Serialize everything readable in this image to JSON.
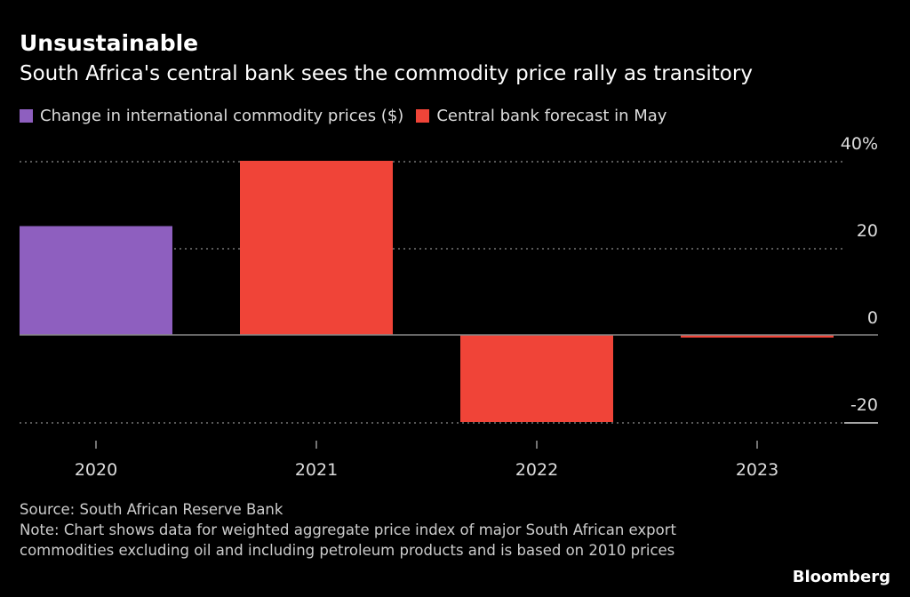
{
  "title": "Unsustainable",
  "subtitle": "South Africa's central bank sees the commodity price rally as transitory",
  "colors": {
    "actual": "#8e5fbf",
    "forecast": "#f04438",
    "background": "#000000"
  },
  "chart_data": {
    "type": "bar",
    "title": "Unsustainable",
    "subtitle": "South Africa's central bank sees the commodity price rally as transitory",
    "categories": [
      "2020",
      "2021",
      "2022",
      "2023"
    ],
    "legend": [
      {
        "name": "Change in international commodity prices ($)",
        "color": "#8e5fbf"
      },
      {
        "name": "Central bank forecast in May",
        "color": "#f04438"
      }
    ],
    "legend_placement": "top-left",
    "values": [
      25,
      40,
      -20,
      -0.6
    ],
    "series_of_bar": [
      "Change in international commodity prices ($)",
      "Central bank forecast in May",
      "Central bank forecast in May",
      "Central bank forecast in May"
    ],
    "ylim": [
      -20,
      40
    ],
    "yticks": [
      -20,
      0,
      20,
      40
    ],
    "ytick_labels": [
      "-20",
      "0",
      "20",
      "40%"
    ],
    "y_axis_side": "right",
    "grid": true
  },
  "footer": {
    "source": "Source: South African Reserve Bank",
    "note": "Note: Chart shows data for weighted aggregate price index of major South African export commodities excluding oil and including petroleum products and is based on 2010 prices"
  },
  "logo": "Bloomberg"
}
